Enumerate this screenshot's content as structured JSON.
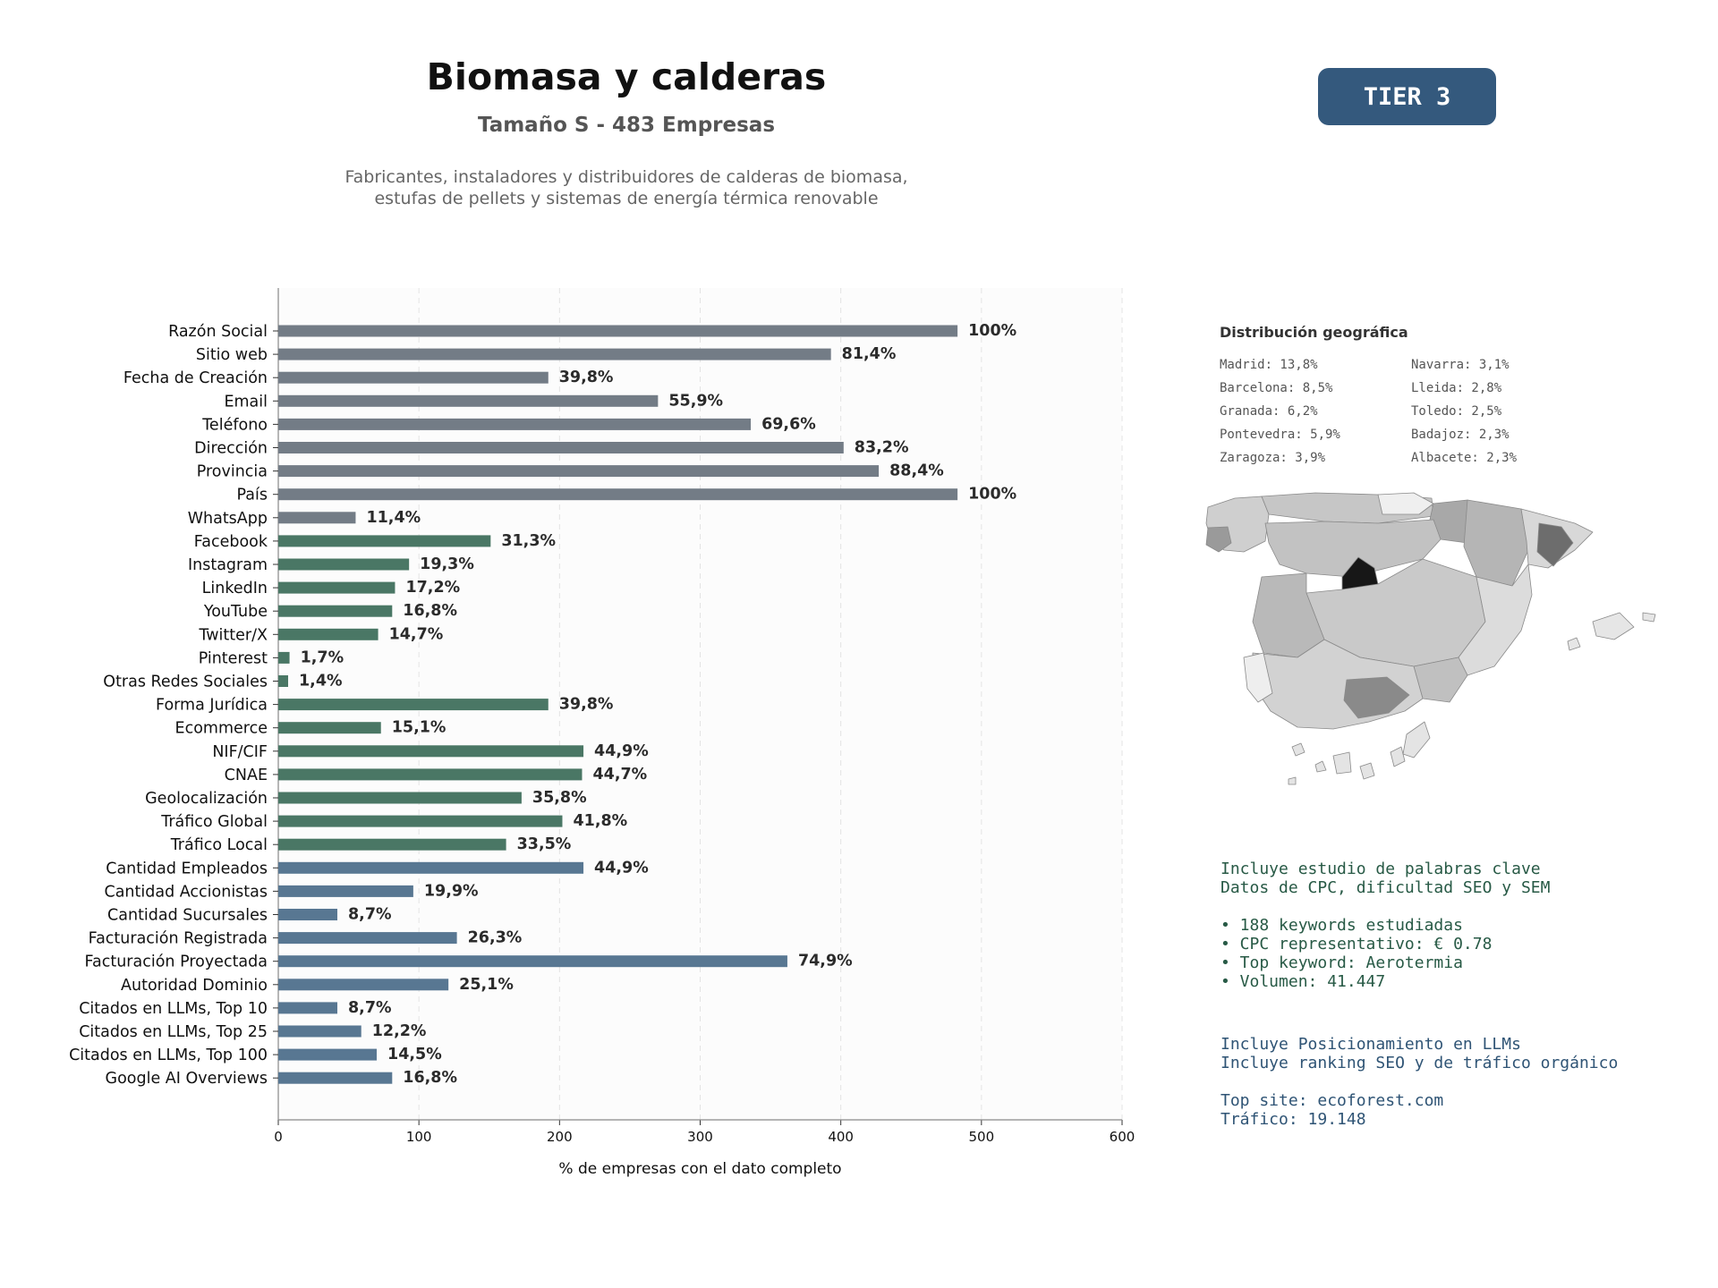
{
  "header": {
    "title": "Biomasa y calderas",
    "subtitle": "Tamaño S - 483 Empresas",
    "description_lines": [
      "Fabricantes, instaladores y distribuidores de calderas de biomasa,",
      "estufas de pellets y sistemas de energía térmica renovable"
    ],
    "tier_label": "TIER 3",
    "tier_color": "#34597d"
  },
  "colors": {
    "group_basic": "#737c86",
    "group_digital": "#4a7765",
    "group_financial": "#587792",
    "keywords_text": "#285a46",
    "llm_text": "#2f5475"
  },
  "chart_data": {
    "type": "bar",
    "orientation": "horizontal",
    "xlabel": "% de empresas con el dato completo",
    "xlim": [
      0,
      600
    ],
    "xticks": [
      0,
      100,
      200,
      300,
      400,
      500,
      600
    ],
    "grid": "vertical dashed",
    "categories": [
      "Razón Social",
      "Sitio web",
      "Fecha de Creación",
      "Email",
      "Teléfono",
      "Dirección",
      "Provincia",
      "País",
      "WhatsApp",
      "Facebook",
      "Instagram",
      "LinkedIn",
      "YouTube",
      "Twitter/X",
      "Pinterest",
      "Otras Redes Sociales",
      "Forma Jurídica",
      "Ecommerce",
      "NIF/CIF",
      "CNAE",
      "Geolocalización",
      "Tráfico Global",
      "Tráfico Local",
      "Cantidad Empleados",
      "Cantidad Accionistas",
      "Cantidad Sucursales",
      "Facturación Registrada",
      "Facturación Proyectada",
      "Autoridad Dominio",
      "Citados en LLMs, Top 10",
      "Citados en LLMs, Top 25",
      "Citados en LLMs, Top 100",
      "Google AI Overviews"
    ],
    "values": [
      483,
      393,
      192,
      270,
      336,
      402,
      427,
      483,
      55,
      151,
      93,
      83,
      81,
      71,
      8,
      7,
      192,
      73,
      217,
      216,
      173,
      202,
      162,
      217,
      96,
      42,
      127,
      362,
      121,
      42,
      59,
      70,
      81
    ],
    "labels": [
      "100%",
      "81,4%",
      "39,8%",
      "55,9%",
      "69,6%",
      "83,2%",
      "88,4%",
      "100%",
      "11,4%",
      "31,3%",
      "19,3%",
      "17,2%",
      "16,8%",
      "14,7%",
      "1,7%",
      "1,4%",
      "39,8%",
      "15,1%",
      "44,9%",
      "44,7%",
      "35,8%",
      "41,8%",
      "33,5%",
      "44,9%",
      "19,9%",
      "8,7%",
      "26,3%",
      "74,9%",
      "25,1%",
      "8,7%",
      "12,2%",
      "14,5%",
      "16,8%"
    ],
    "groups": [
      "basic",
      "basic",
      "basic",
      "basic",
      "basic",
      "basic",
      "basic",
      "basic",
      "basic",
      "digital",
      "digital",
      "digital",
      "digital",
      "digital",
      "digital",
      "digital",
      "digital",
      "digital",
      "digital",
      "digital",
      "digital",
      "digital",
      "digital",
      "financial",
      "financial",
      "financial",
      "financial",
      "financial",
      "financial",
      "financial",
      "financial",
      "financial",
      "financial"
    ]
  },
  "geo": {
    "title": "Distribución geográfica",
    "items": [
      "Madrid: 13,8%",
      "Navarra: 3,1%",
      "Barcelona: 8,5%",
      "Lleida: 2,8%",
      "Granada: 6,2%",
      "Toledo: 2,5%",
      "Pontevedra: 5,9%",
      "Badajoz: 2,3%",
      "Zaragoza: 3,9%",
      "Albacete: 2,3%"
    ]
  },
  "keywords": {
    "lines": [
      "Incluye estudio de palabras clave",
      "Datos de CPC, dificultad SEO y SEM",
      "",
      "• 188 keywords estudiadas",
      "• CPC representativo: € 0.78",
      "• Top keyword: Aerotermia",
      "• Volumen: 41.447"
    ]
  },
  "llm": {
    "lines": [
      "Incluye Posicionamiento en LLMs",
      "Incluye ranking SEO y de tráfico orgánico",
      "",
      "Top site: ecoforest.com",
      "Tráfico: 19.148"
    ]
  }
}
